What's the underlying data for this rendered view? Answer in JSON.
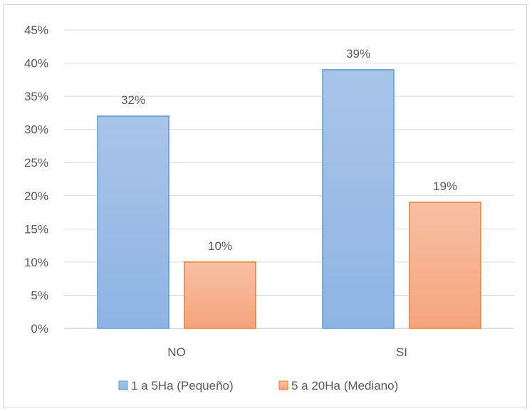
{
  "chart_data": {
    "type": "bar",
    "categories": [
      "NO",
      "SI"
    ],
    "series": [
      {
        "name": "1 a 5Ha (Pequeño)",
        "values": [
          32,
          39
        ],
        "labels": [
          "32%",
          "39%"
        ],
        "color": "#a9c4e8",
        "color_bottom": "#8eb4e3",
        "stroke": "#5b9bd5"
      },
      {
        "name": "5 a 20Ha (Mediano)",
        "values": [
          10,
          19
        ],
        "labels": [
          "10%",
          "19%"
        ],
        "color": "#f8c0a4",
        "color_bottom": "#f4a47c",
        "stroke": "#ed7d31"
      }
    ],
    "yticks": [
      "0%",
      "5%",
      "10%",
      "15%",
      "20%",
      "25%",
      "30%",
      "35%",
      "40%",
      "45%"
    ],
    "ylim": [
      0,
      45
    ],
    "grid": true,
    "legend_position": "bottom"
  }
}
